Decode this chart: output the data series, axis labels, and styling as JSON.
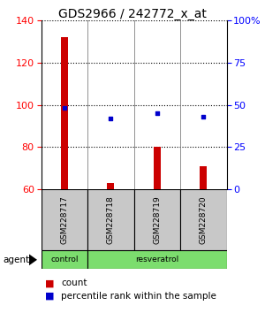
{
  "title": "GDS2966 / 242772_x_at",
  "samples": [
    "GSM228717",
    "GSM228718",
    "GSM228719",
    "GSM228720"
  ],
  "counts": [
    132,
    63,
    80,
    71
  ],
  "percentile_ranks": [
    48,
    42,
    45,
    43
  ],
  "ylim_left": [
    60,
    140
  ],
  "yticks_left": [
    60,
    80,
    100,
    120,
    140
  ],
  "ylim_right": [
    0,
    100
  ],
  "yticks_right": [
    0,
    25,
    50,
    75,
    100
  ],
  "bar_color": "#cc0000",
  "dot_color": "#0000cc",
  "bar_width": 0.15,
  "agent_label": "agent",
  "legend_count_label": "count",
  "legend_pct_label": "percentile rank within the sample",
  "title_fontsize": 10,
  "tick_fontsize": 8,
  "label_fontsize": 8,
  "background_color": "#ffffff",
  "plot_bg": "#ffffff",
  "sample_label_area_color": "#c8c8c8",
  "group_label_area_color": "#7cdd6e"
}
